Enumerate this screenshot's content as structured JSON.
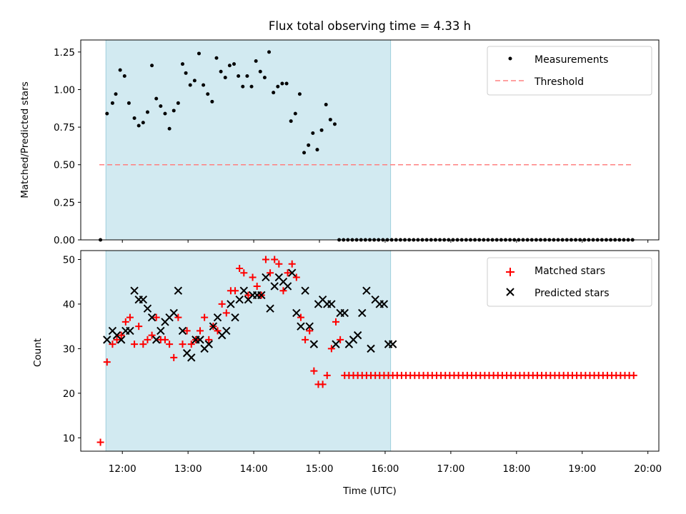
{
  "colors": {
    "band": "#add8e6",
    "measurement": "#000000",
    "threshold": "#ff8080",
    "matched": "#ff0000",
    "predicted": "#000000"
  },
  "chart_data": [
    {
      "id": "ratio",
      "type": "scatter",
      "title": "Flux total observing time = 4.33 h",
      "ylabel": "Matched/Predicted stars",
      "xlim": [
        "11:22",
        "20:10"
      ],
      "ylim": [
        0,
        1.33
      ],
      "yticks": [
        0,
        0.25,
        0.5,
        0.75,
        1.0,
        1.25
      ],
      "ytick_labels": [
        "0.00",
        "0.25",
        "0.50",
        "0.75",
        "1.00",
        "1.25"
      ],
      "shaded_interval": [
        "11:45",
        "16:05"
      ],
      "legend": {
        "placement": "top-right",
        "entries": [
          "Measurements",
          "Threshold"
        ]
      },
      "threshold": {
        "name": "Threshold",
        "y": 0.5,
        "x": [
          "11:39",
          "19:46"
        ]
      },
      "series": [
        {
          "name": "Measurements",
          "x": [
            "11:40",
            "11:46",
            "11:51",
            "11:54",
            "11:58",
            "12:02",
            "12:06",
            "12:11",
            "12:15",
            "12:19",
            "12:23",
            "12:27",
            "12:31",
            "12:35",
            "12:39",
            "12:43",
            "12:47",
            "12:51",
            "12:55",
            "12:58",
            "13:02",
            "13:06",
            "13:10",
            "13:14",
            "13:18",
            "13:22",
            "13:26",
            "13:30",
            "13:34",
            "13:38",
            "13:42",
            "13:46",
            "13:50",
            "13:54",
            "13:58",
            "14:02",
            "14:06",
            "14:10",
            "14:14",
            "14:18",
            "14:22",
            "14:26",
            "14:30",
            "14:34",
            "14:38",
            "14:42",
            "14:46",
            "14:50",
            "14:54",
            "14:58",
            "15:02",
            "15:06",
            "15:10",
            "15:14",
            "15:18",
            "15:22",
            "15:26",
            "15:30",
            "15:34",
            "15:38",
            "15:42",
            "15:46",
            "15:50",
            "15:54",
            "15:58",
            "16:02",
            "16:06",
            "16:10",
            "16:14",
            "16:18",
            "16:22",
            "16:26",
            "16:30",
            "16:34",
            "16:38",
            "16:42",
            "16:46",
            "16:50",
            "16:54",
            "16:58",
            "17:02",
            "17:06",
            "17:10",
            "17:14",
            "17:18",
            "17:22",
            "17:26",
            "17:30",
            "17:34",
            "17:38",
            "17:42",
            "17:46",
            "17:50",
            "17:54",
            "17:58",
            "18:02",
            "18:06",
            "18:10",
            "18:14",
            "18:18",
            "18:22",
            "18:26",
            "18:30",
            "18:34",
            "18:38",
            "18:42",
            "18:46",
            "18:50",
            "18:54",
            "18:58",
            "19:02",
            "19:06",
            "19:10",
            "19:14",
            "19:18",
            "19:22",
            "19:26",
            "19:30",
            "19:34",
            "19:38",
            "19:42",
            "19:46"
          ],
          "y": [
            0.0,
            0.84,
            0.91,
            0.97,
            1.13,
            1.09,
            0.91,
            0.81,
            0.76,
            0.78,
            0.85,
            1.16,
            0.94,
            0.89,
            0.84,
            0.74,
            0.86,
            0.91,
            1.17,
            1.11,
            1.03,
            1.06,
            1.24,
            1.03,
            0.97,
            0.92,
            1.21,
            1.12,
            1.08,
            1.16,
            1.17,
            1.09,
            1.02,
            1.09,
            1.02,
            1.19,
            1.12,
            1.08,
            1.25,
            0.98,
            1.02,
            1.04,
            1.04,
            0.79,
            0.84,
            0.97,
            0.58,
            0.63,
            0.71,
            0.6,
            0.73,
            0.9,
            0.8,
            0.77,
            0,
            0,
            0,
            0,
            0,
            0,
            0,
            0,
            0,
            0,
            0,
            0,
            0,
            0,
            0,
            0,
            0,
            0,
            0,
            0,
            0,
            0,
            0,
            0,
            0,
            0,
            0,
            0,
            0,
            0,
            0,
            0,
            0,
            0,
            0,
            0,
            0,
            0,
            0,
            0,
            0,
            0,
            0,
            0,
            0,
            0,
            0,
            0,
            0,
            0,
            0,
            0,
            0,
            0,
            0,
            0,
            0,
            0,
            0,
            0,
            0,
            0,
            0,
            0,
            0,
            0,
            0,
            0
          ]
        }
      ]
    },
    {
      "id": "counts",
      "type": "scatter",
      "xlabel": "Time (UTC)",
      "ylabel": "Count",
      "xlim": [
        "11:22",
        "20:10"
      ],
      "ylim": [
        7,
        52
      ],
      "xticks": [
        "12:00",
        "13:00",
        "14:00",
        "15:00",
        "16:00",
        "17:00",
        "18:00",
        "19:00",
        "20:00"
      ],
      "yticks": [
        10,
        20,
        30,
        40,
        50
      ],
      "shaded_interval": [
        "11:45",
        "16:05"
      ],
      "legend": {
        "placement": "top-right",
        "entries": [
          "Matched stars",
          "Predicted stars"
        ]
      },
      "series": [
        {
          "name": "Matched stars",
          "marker": "plus",
          "x": [
            "11:40",
            "11:46",
            "11:51",
            "11:55",
            "11:59",
            "12:03",
            "12:07",
            "12:11",
            "12:15",
            "12:19",
            "12:23",
            "12:27",
            "12:31",
            "12:35",
            "12:39",
            "12:43",
            "12:47",
            "12:51",
            "12:55",
            "12:59",
            "13:03",
            "13:07",
            "13:11",
            "13:15",
            "13:19",
            "13:23",
            "13:27",
            "13:31",
            "13:35",
            "13:39",
            "13:43",
            "13:47",
            "13:51",
            "13:55",
            "13:59",
            "14:03",
            "14:07",
            "14:11",
            "14:15",
            "14:19",
            "14:23",
            "14:27",
            "14:31",
            "14:35",
            "14:39",
            "14:43",
            "14:47",
            "14:51",
            "14:55",
            "14:59",
            "15:03",
            "15:07",
            "15:11",
            "15:15",
            "15:19",
            "15:23",
            "15:27",
            "15:31",
            "15:35",
            "15:39",
            "15:43",
            "15:47",
            "15:51",
            "15:55",
            "15:59",
            "16:03",
            "16:07",
            "16:11",
            "16:15",
            "16:19",
            "16:23",
            "16:27",
            "16:31",
            "16:35",
            "16:39",
            "16:43",
            "16:47",
            "16:51",
            "16:55",
            "16:59",
            "17:03",
            "17:07",
            "17:11",
            "17:15",
            "17:19",
            "17:23",
            "17:27",
            "17:31",
            "17:35",
            "17:39",
            "17:43",
            "17:47",
            "17:51",
            "17:55",
            "17:59",
            "18:03",
            "18:07",
            "18:11",
            "18:15",
            "18:19",
            "18:23",
            "18:27",
            "18:31",
            "18:35",
            "18:39",
            "18:43",
            "18:47",
            "18:51",
            "18:55",
            "18:59",
            "19:03",
            "19:07",
            "19:11",
            "19:15",
            "19:19",
            "19:23",
            "19:27",
            "19:31",
            "19:35",
            "19:39",
            "19:43",
            "19:47"
          ],
          "y": [
            9,
            27,
            31,
            32,
            33,
            36,
            37,
            31,
            35,
            31,
            32,
            33,
            37,
            32,
            32,
            31,
            28,
            37,
            31,
            34,
            31,
            32,
            34,
            37,
            32,
            35,
            34,
            40,
            38,
            43,
            43,
            48,
            47,
            42,
            46,
            44,
            42,
            50,
            47,
            50,
            49,
            43,
            47,
            49,
            46,
            37,
            32,
            34,
            25,
            22,
            22,
            24,
            30,
            36,
            32,
            24,
            24,
            24,
            24,
            24,
            24,
            24,
            24,
            24,
            24,
            24,
            24,
            24,
            24,
            24,
            24,
            24,
            24,
            24,
            24,
            24,
            24,
            24,
            24,
            24,
            24,
            24,
            24,
            24,
            24,
            24,
            24,
            24,
            24,
            24,
            24,
            24,
            24,
            24,
            24,
            24,
            24,
            24,
            24,
            24,
            24,
            24,
            24,
            24,
            24,
            24,
            24,
            24,
            24,
            24,
            24,
            24,
            24,
            24,
            24,
            24,
            24,
            24,
            24,
            24,
            24,
            24
          ]
        },
        {
          "name": "Predicted stars",
          "marker": "x",
          "x": [
            "11:46",
            "11:51",
            "11:55",
            "11:59",
            "12:03",
            "12:07",
            "12:11",
            "12:15",
            "12:19",
            "12:23",
            "12:27",
            "12:31",
            "12:35",
            "12:39",
            "12:43",
            "12:47",
            "12:51",
            "12:55",
            "12:59",
            "13:03",
            "13:07",
            "13:11",
            "13:15",
            "13:19",
            "13:23",
            "13:27",
            "13:31",
            "13:35",
            "13:39",
            "13:43",
            "13:47",
            "13:51",
            "13:55",
            "13:59",
            "14:03",
            "14:07",
            "14:11",
            "14:15",
            "14:19",
            "14:23",
            "14:27",
            "14:31",
            "14:35",
            "14:39",
            "14:43",
            "14:47",
            "14:51",
            "14:55",
            "14:59",
            "15:03",
            "15:07",
            "15:11",
            "15:15",
            "15:19",
            "15:23",
            "15:27",
            "15:31",
            "15:35",
            "15:39",
            "15:43",
            "15:47",
            "15:51",
            "15:55",
            "15:59",
            "16:03",
            "16:07"
          ],
          "y": [
            32,
            34,
            33,
            32,
            34,
            34,
            43,
            41,
            41,
            39,
            37,
            32,
            34,
            36,
            37,
            38,
            43,
            34,
            29,
            28,
            32,
            32,
            30,
            31,
            35,
            37,
            33,
            34,
            40,
            37,
            41,
            43,
            41,
            42,
            42,
            42,
            46,
            39,
            44,
            46,
            45,
            44,
            47,
            38,
            35,
            43,
            35,
            31,
            40,
            41,
            40,
            40,
            31,
            38,
            38,
            31,
            32,
            33,
            38,
            43,
            30,
            41,
            40,
            40,
            31,
            31
          ]
        }
      ]
    }
  ]
}
